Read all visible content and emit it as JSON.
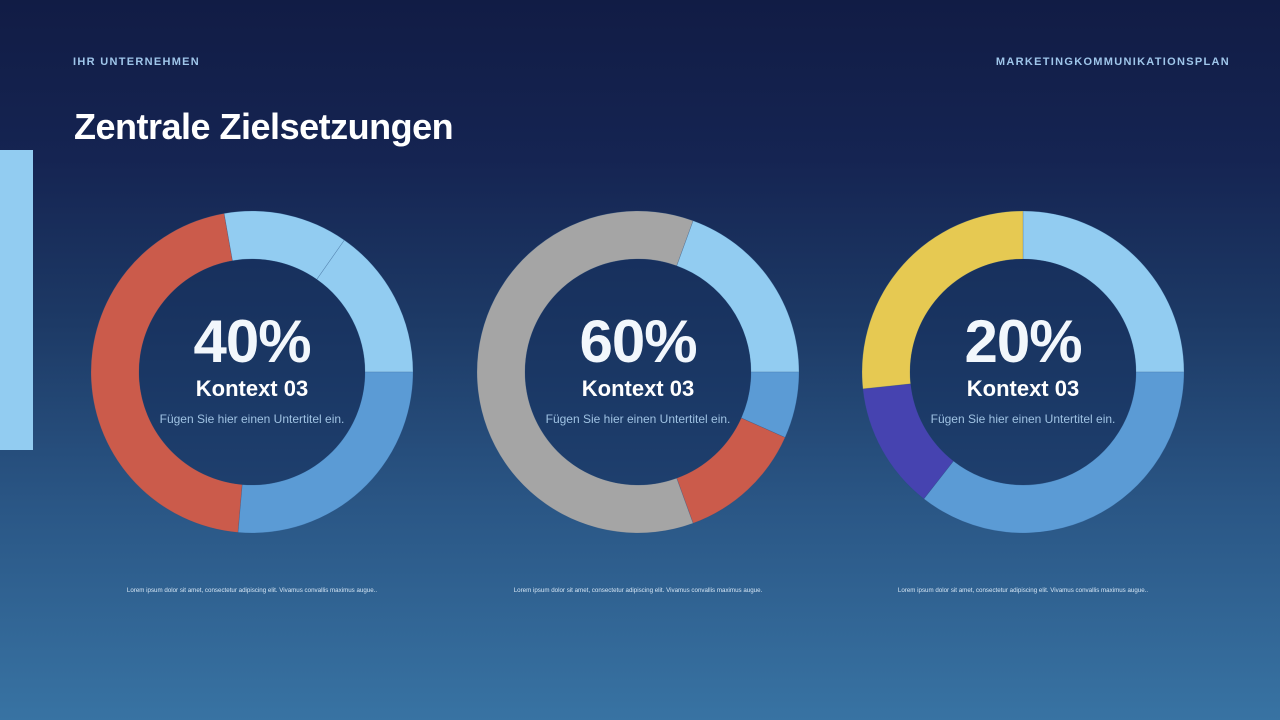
{
  "header": {
    "company": "IHR UNTERNEHMEN",
    "document": "MARKETINGKOMMUNIKATIONSPLAN",
    "title": "Zentrale Zielsetzungen"
  },
  "colors": {
    "light_blue": "#92ccf1",
    "medium_blue": "#5b9bd5",
    "red": "#cb5b4b",
    "grey": "#a5a5a5",
    "yellow": "#e6c952",
    "indigo": "#4643b0",
    "accent_bar": "#92ccf1"
  },
  "cards": [
    {
      "percent": "40%",
      "context": "Kontext 03",
      "subtitle": "Fügen Sie hier einen Untertitel ein.",
      "caption": "Lorem ipsum dolor sit amet, consectetur adipiscing elit. Vivamus convallis maximus augue.."
    },
    {
      "percent": "60%",
      "context": "Kontext 03",
      "subtitle": "Fügen Sie hier einen Untertitel ein.",
      "caption": "Lorem ipsum dolor sit amet, consectetur adipiscing elit. Vivamus convallis maximus augue."
    },
    {
      "percent": "20%",
      "context": "Kontext 03",
      "subtitle": "Fügen Sie hier einen Untertitel ein.",
      "caption": "Lorem ipsum dolor sit amet, consectetur adipiscing elit. Vivamus convallis maximus augue.."
    }
  ],
  "chart_data": [
    {
      "type": "pie",
      "variant": "donut",
      "center_label": "40%",
      "title": "Kontext 03",
      "subtitle": "Fügen Sie hier einen Untertitel ein.",
      "start_angle_deg": -10,
      "direction": "clockwise",
      "segments": [
        {
          "color": "#92ccf1",
          "degrees": 45
        },
        {
          "color": "#92ccf1",
          "degrees": 55
        },
        {
          "color": "#5b9bd5",
          "degrees": 95
        },
        {
          "color": "#cb5b4b",
          "degrees": 165
        }
      ],
      "values_pct": [
        12.5,
        15.3,
        26.4,
        45.8
      ]
    },
    {
      "type": "pie",
      "variant": "donut",
      "center_label": "60%",
      "title": "Kontext 03",
      "subtitle": "Fügen Sie hier einen Untertitel ein.",
      "start_angle_deg": 20,
      "direction": "clockwise",
      "segments": [
        {
          "color": "#92ccf1",
          "degrees": 70
        },
        {
          "color": "#5b9bd5",
          "degrees": 24
        },
        {
          "color": "#cb5b4b",
          "degrees": 46
        },
        {
          "color": "#a5a5a5",
          "degrees": 220
        }
      ],
      "values_pct": [
        19.4,
        6.7,
        12.8,
        61.1
      ]
    },
    {
      "type": "pie",
      "variant": "donut",
      "center_label": "20%",
      "title": "Kontext 03",
      "subtitle": "Fügen Sie hier einen Untertitel ein.",
      "start_angle_deg": 0,
      "direction": "clockwise",
      "segments": [
        {
          "color": "#92ccf1",
          "degrees": 90
        },
        {
          "color": "#5b9bd5",
          "degrees": 128
        },
        {
          "color": "#4643b0",
          "degrees": 46
        },
        {
          "color": "#e6c952",
          "degrees": 96
        }
      ],
      "values_pct": [
        25.0,
        35.6,
        12.8,
        26.7
      ]
    }
  ]
}
